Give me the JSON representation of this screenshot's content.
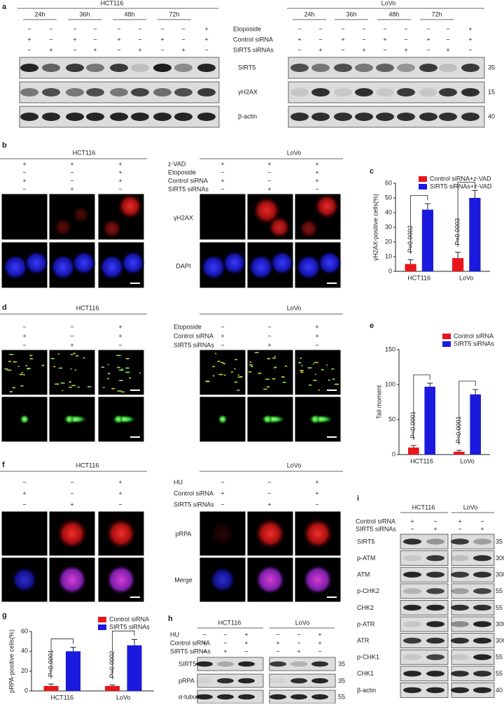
{
  "blot_a": {
    "label": "a",
    "groups": [
      "HCT116",
      "LoVo"
    ],
    "timepoints": [
      "24h",
      "36h",
      "48h",
      "72h"
    ],
    "conditions": [
      {
        "name": "Etoposide",
        "signs": [
          "−",
          "−",
          "−",
          "−",
          "−",
          "−",
          "−",
          "−",
          "+"
        ]
      },
      {
        "name": "Control siRNA",
        "signs": [
          "+",
          "−",
          "+",
          "−",
          "+",
          "−",
          "+",
          "−",
          "+"
        ]
      },
      {
        "name": "SIRT5 siRNAs",
        "signs": [
          "−",
          "+",
          "−",
          "+",
          "−",
          "+",
          "−",
          "+",
          "−"
        ]
      }
    ],
    "proteins": [
      "SIRT5",
      "γH2AX",
      "β-actin"
    ],
    "mw": [
      35,
      15,
      40
    ]
  },
  "if_b": {
    "label": "b",
    "groups": [
      "HCT116",
      "LoVo"
    ],
    "conditions": [
      {
        "name": "z-VAD",
        "signs": [
          "+",
          "+",
          "+"
        ]
      },
      {
        "name": "Etoposide",
        "signs": [
          "−",
          "−",
          "+"
        ]
      },
      {
        "name": "Control siRNA",
        "signs": [
          "+",
          "−",
          "+"
        ]
      },
      {
        "name": "SIRT5 siRNAs",
        "signs": [
          "−",
          "+",
          "−"
        ]
      }
    ],
    "stains": [
      "γH2AX",
      "DAPI"
    ]
  },
  "comet_d": {
    "label": "d",
    "groups": [
      "HCT116",
      "LoVo"
    ],
    "conditions": [
      {
        "name": "Etoposide",
        "signs": [
          "−",
          "−",
          "+"
        ]
      },
      {
        "name": "Control siRNA",
        "signs": [
          "+",
          "−",
          "+"
        ]
      },
      {
        "name": "SIRT5 siRNAs",
        "signs": [
          "−",
          "+",
          "−"
        ]
      }
    ]
  },
  "if_f": {
    "label": "f",
    "groups": [
      "HCT116",
      "LoVo"
    ],
    "conditions": [
      {
        "name": "HU",
        "signs": [
          "−",
          "−",
          "+"
        ]
      },
      {
        "name": "Control siRNA",
        "signs": [
          "+",
          "−",
          "+"
        ]
      },
      {
        "name": "SIRT5 siRNAs",
        "signs": [
          "−",
          "+",
          "−"
        ]
      }
    ],
    "stains": [
      "pRPA",
      "Merge"
    ]
  },
  "blot_h": {
    "label": "h",
    "groups": [
      "HCT116",
      "LoVo"
    ],
    "conditions": [
      {
        "name": "HU",
        "signs": [
          "−",
          "−",
          "+"
        ]
      },
      {
        "name": "Control siRNA",
        "signs": [
          "+",
          "−",
          "+"
        ]
      },
      {
        "name": "SIRT5 siRNAs",
        "signs": [
          "−",
          "+",
          "−"
        ]
      }
    ],
    "proteins": [
      "SIRT5",
      "pRPA",
      "α-tubulin"
    ],
    "mw": [
      35,
      35,
      55
    ]
  },
  "blot_i": {
    "label": "i",
    "groups": [
      "HCT116",
      "LoVo"
    ],
    "conditions": [
      {
        "name": "Control siRNA",
        "signs": [
          "+",
          "−"
        ]
      },
      {
        "name": "SIRT5 siRNAs",
        "signs": [
          "−",
          "+"
        ]
      }
    ],
    "proteins": [
      "SIRT5",
      "p-ATM",
      "ATM",
      "p-CHK2",
      "CHK2",
      "p-ATR",
      "ATR",
      "p-CHK1",
      "CHK1",
      "β-actin"
    ],
    "mw": [
      35,
      300,
      300,
      55,
      55,
      300,
      300,
      55,
      55,
      40
    ]
  },
  "chart_data": [
    {
      "type": "bar",
      "label": "c",
      "y_label": "γH2AX-positive cells(%)",
      "categories": [
        "HCT116",
        "LoVo"
      ],
      "series": [
        {
          "name": "Control siRNA+z-VAD",
          "color": "#e8161b",
          "values": [
            5,
            9
          ],
          "errors": [
            3,
            4
          ]
        },
        {
          "name": "SIRT5 siRNAs+z-VAD",
          "color": "#1a1adf",
          "values": [
            42,
            50
          ],
          "errors": [
            4,
            5
          ]
        }
      ],
      "p_values": [
        "P=0.0002",
        "P=0.0003"
      ],
      "ylim": [
        0,
        60
      ],
      "yticks": [
        0,
        10,
        20,
        30,
        40,
        50,
        60
      ]
    },
    {
      "type": "bar",
      "label": "e",
      "y_label": "Tail moment",
      "categories": [
        "HCT116",
        "LoVo"
      ],
      "series": [
        {
          "name": "Control siRNA",
          "color": "#e8161b",
          "values": [
            10,
            4
          ],
          "errors": [
            3,
            2
          ]
        },
        {
          "name": "SIRT5 siRNAs",
          "color": "#1a1adf",
          "values": [
            97,
            86
          ],
          "errors": [
            5,
            7
          ]
        }
      ],
      "p_values": [
        "P<0.0001",
        "P<0.0001"
      ],
      "ylim": [
        0,
        150
      ],
      "yticks": [
        0,
        50,
        100,
        150
      ]
    },
    {
      "type": "bar",
      "label": "g",
      "y_label": "pRPA-positive cells(%)",
      "categories": [
        "HCT116",
        "LoVo"
      ],
      "series": [
        {
          "name": "Control siRNA",
          "color": "#e8161b",
          "values": [
            5,
            5
          ],
          "errors": [
            2,
            1
          ]
        },
        {
          "name": "SIRT5 siRNAs",
          "color": "#1a1adf",
          "values": [
            40,
            46
          ],
          "errors": [
            4,
            6
          ]
        }
      ],
      "p_values": [
        "P<0.0001",
        "P=0.0002"
      ],
      "ylim": [
        0,
        60
      ],
      "yticks": [
        0,
        20,
        40,
        60
      ]
    }
  ]
}
